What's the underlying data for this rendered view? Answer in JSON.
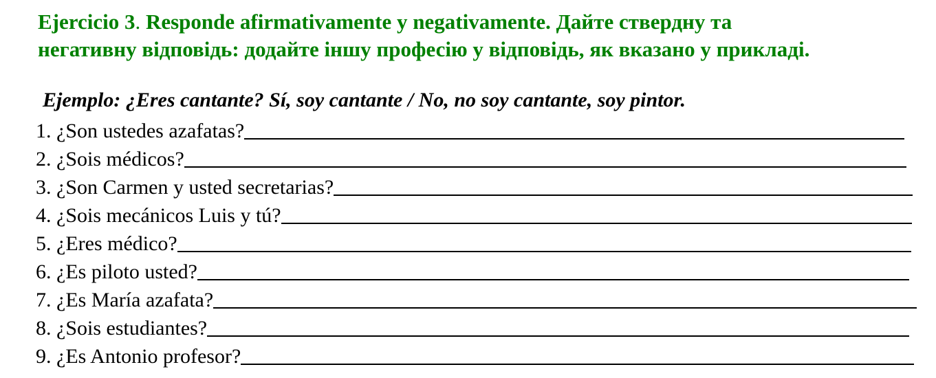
{
  "title": {
    "exercise": "Ejercicio 3",
    "dot": ".",
    "line1_rest": " Responde afirmativamente y negativamente. Дайте ствердну та",
    "line2": "негативну відповідь: додайте іншу професію у відповідь, як вказано у прикладі.",
    "color": "#008000"
  },
  "example": "Ejemplo: ¿Eres cantante? Sí, soy cantante / No, no soy cantante, soy pintor.",
  "questions": [
    "1. ¿Son ustedes azafatas?",
    "2. ¿Sois médicos?",
    "3. ¿Son Carmen y usted secretarias?",
    "4. ¿Sois mecánicos Luis y tú?",
    "5. ¿Eres médico?",
    "6. ¿Es piloto usted?",
    "7. ¿Es María azafata?",
    "8. ¿Sois estudiantes?",
    "9. ¿Es Antonio profesor?"
  ]
}
